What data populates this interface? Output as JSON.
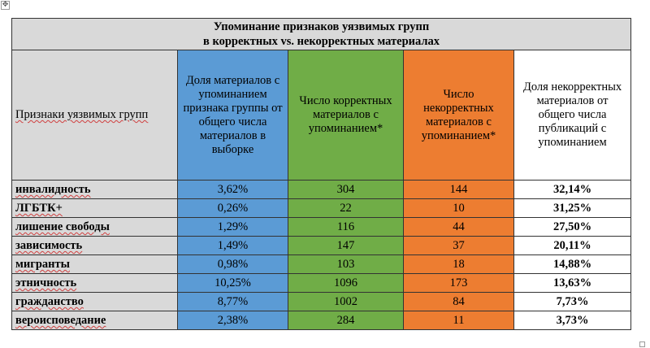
{
  "table": {
    "title_line1": "Упоминание признаков уязвимых групп",
    "title_line2": "в корректных vs. некорректных материалах",
    "headers": [
      "Признаки уязвимых групп",
      "Доля материалов с упоминанием признака группы от общего числа материалов в выборке",
      "Число корректных материалов с упоминанием*",
      "Число некорректных материалов с упоминанием*",
      "Доля некорректных материалов от общего числа публикаций с упоминанием"
    ],
    "rows": [
      {
        "group": "инвалидность",
        "share": "3,62%",
        "correct": "304",
        "incorrect": "144",
        "incorrect_share": "32,14%"
      },
      {
        "group": "ЛГБТК+",
        "share": "0,26%",
        "correct": "22",
        "incorrect": "10",
        "incorrect_share": "31,25%"
      },
      {
        "group": "лишение свободы",
        "share": "1,29%",
        "correct": "116",
        "incorrect": "44",
        "incorrect_share": "27,50%"
      },
      {
        "group": "зависимость",
        "share": "1,49%",
        "correct": "147",
        "incorrect": "37",
        "incorrect_share": "20,11%"
      },
      {
        "group": "мигранты",
        "share": "0,98%",
        "correct": "103",
        "incorrect": "18",
        "incorrect_share": "14,88%"
      },
      {
        "group": "этничность",
        "share": "10,25%",
        "correct": "1096",
        "incorrect": "173",
        "incorrect_share": "13,63%"
      },
      {
        "group": "гражданство",
        "share": "8,77%",
        "correct": "1002",
        "incorrect": "84",
        "incorrect_share": "7,73%"
      },
      {
        "group": "вероисповедание",
        "share": "2,38%",
        "correct": "284",
        "incorrect": "11",
        "incorrect_share": "3,73%"
      }
    ]
  },
  "colors": {
    "label_bg": "#d9d9d9",
    "share_col": "#5b9bd5",
    "correct_col": "#70ad47",
    "incorrect_col": "#ed7d31"
  },
  "icons": {
    "move_handle": "table-move-handle-icon",
    "resize_handle": "table-resize-handle-icon"
  }
}
